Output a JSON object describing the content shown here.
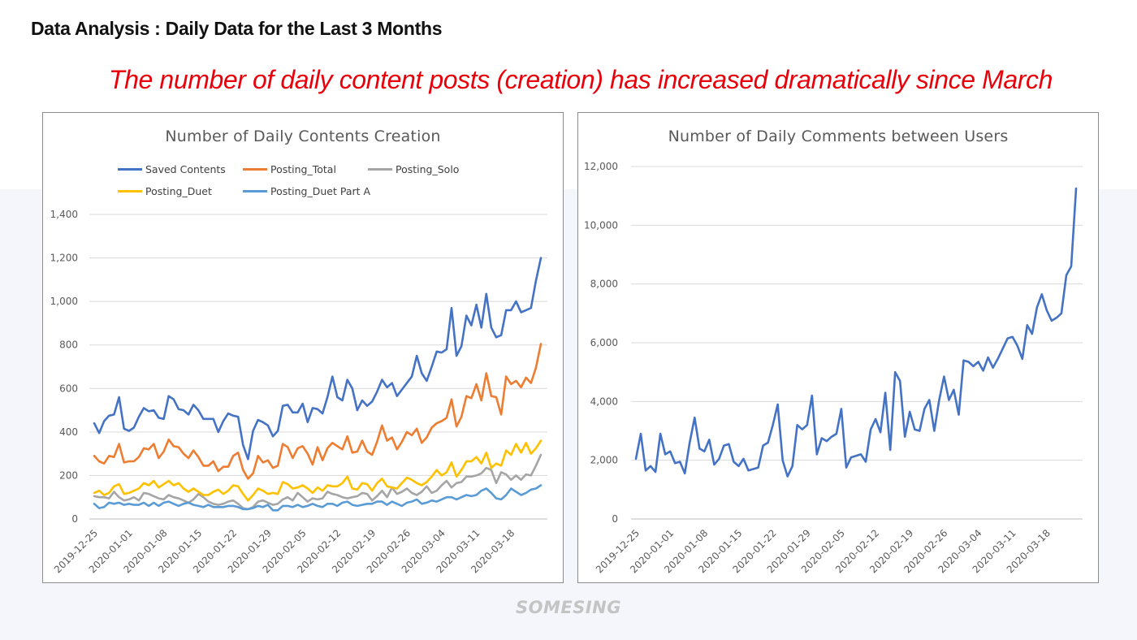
{
  "page": {
    "title": "Data Analysis : Daily Data for the Last 3 Months",
    "headline": "The number of daily content posts (creation) has increased dramatically since March",
    "brand": "SOMESING"
  },
  "chart_data": [
    {
      "type": "line",
      "title": "Number of Daily  Contents Creation",
      "xlabel": "",
      "ylabel": "",
      "ylim": [
        0,
        1400
      ],
      "yticks": [
        0,
        200,
        400,
        600,
        800,
        1000,
        1200,
        1400
      ],
      "ytick_labels": [
        "0",
        "200",
        "400",
        "600",
        "800",
        "1,000",
        "1,200",
        "1,400"
      ],
      "x_start": "2019-12-25",
      "x_tick_labels": [
        "2019-12-25",
        "2020-01-01",
        "2020-01-08",
        "2020-01-15",
        "2020-01-22",
        "2020-01-29",
        "2020-02-05",
        "2020-02-12",
        "2020-02-19",
        "2020-02-26",
        "2020-03-04",
        "2020-03-11",
        "2020-03-18"
      ],
      "grid": true,
      "legend": "top",
      "series": [
        {
          "name": "Saved Contents",
          "color": "#4472c4",
          "values": [
            440,
            395,
            450,
            475,
            480,
            560,
            415,
            405,
            420,
            470,
            510,
            495,
            500,
            465,
            460,
            565,
            550,
            505,
            500,
            480,
            525,
            500,
            460,
            460,
            460,
            400,
            450,
            485,
            475,
            470,
            340,
            275,
            405,
            455,
            445,
            430,
            380,
            405,
            520,
            525,
            490,
            490,
            530,
            445,
            510,
            505,
            485,
            560,
            655,
            560,
            545,
            640,
            600,
            500,
            545,
            520,
            540,
            585,
            640,
            605,
            625,
            565,
            595,
            625,
            655,
            750,
            670,
            635,
            700,
            770,
            765,
            780,
            970,
            750,
            795,
            935,
            890,
            985,
            880,
            1035,
            880,
            835,
            845,
            960,
            960,
            1000,
            950,
            960,
            970,
            1095,
            1200
          ]
        },
        {
          "name": "Posting_Total",
          "color": "#ed7d31",
          "values": [
            290,
            265,
            255,
            290,
            285,
            345,
            260,
            265,
            265,
            285,
            325,
            320,
            345,
            280,
            310,
            365,
            335,
            330,
            300,
            280,
            315,
            285,
            245,
            245,
            265,
            220,
            240,
            240,
            290,
            305,
            225,
            185,
            210,
            290,
            260,
            270,
            235,
            245,
            345,
            330,
            280,
            325,
            335,
            300,
            250,
            330,
            270,
            325,
            350,
            335,
            320,
            380,
            305,
            310,
            360,
            310,
            295,
            355,
            430,
            360,
            375,
            320,
            355,
            400,
            385,
            415,
            350,
            375,
            420,
            440,
            450,
            465,
            550,
            425,
            470,
            565,
            555,
            620,
            545,
            670,
            565,
            560,
            480,
            655,
            620,
            635,
            605,
            650,
            625,
            695,
            805
          ]
        },
        {
          "name": "Posting_Solo",
          "color": "#a5a5a5",
          "values": [
            105,
            100,
            100,
            95,
            125,
            100,
            85,
            90,
            100,
            85,
            120,
            115,
            105,
            95,
            90,
            110,
            100,
            95,
            85,
            75,
            90,
            115,
            100,
            80,
            70,
            65,
            70,
            80,
            85,
            70,
            50,
            45,
            55,
            80,
            85,
            75,
            65,
            70,
            90,
            100,
            85,
            120,
            100,
            80,
            95,
            90,
            95,
            125,
            115,
            110,
            100,
            95,
            100,
            105,
            120,
            115,
            85,
            105,
            130,
            100,
            145,
            115,
            125,
            140,
            120,
            110,
            125,
            150,
            120,
            130,
            155,
            175,
            145,
            165,
            170,
            195,
            195,
            200,
            210,
            235,
            225,
            165,
            215,
            205,
            180,
            200,
            180,
            205,
            200,
            245,
            295
          ]
        },
        {
          "name": "Posting_Duet",
          "color": "#ffc000",
          "values": [
            120,
            130,
            110,
            120,
            150,
            160,
            115,
            120,
            130,
            140,
            165,
            155,
            175,
            145,
            160,
            175,
            155,
            165,
            140,
            125,
            140,
            125,
            110,
            110,
            125,
            135,
            115,
            130,
            155,
            150,
            115,
            85,
            110,
            140,
            130,
            115,
            120,
            115,
            170,
            160,
            140,
            145,
            155,
            140,
            120,
            145,
            130,
            155,
            150,
            150,
            165,
            195,
            140,
            135,
            165,
            160,
            130,
            165,
            185,
            150,
            145,
            140,
            165,
            190,
            180,
            165,
            155,
            170,
            195,
            225,
            200,
            215,
            260,
            195,
            225,
            265,
            265,
            285,
            255,
            305,
            235,
            255,
            245,
            315,
            295,
            345,
            305,
            350,
            300,
            325,
            360
          ]
        },
        {
          "name": "Posting_Duet Part A",
          "color": "#5b9bd5",
          "values": [
            70,
            50,
            55,
            75,
            70,
            75,
            65,
            70,
            65,
            65,
            75,
            60,
            75,
            60,
            75,
            80,
            70,
            60,
            70,
            75,
            65,
            60,
            55,
            65,
            55,
            55,
            55,
            60,
            60,
            55,
            45,
            45,
            50,
            60,
            55,
            65,
            40,
            40,
            60,
            60,
            55,
            65,
            55,
            60,
            70,
            60,
            55,
            70,
            70,
            60,
            75,
            80,
            65,
            60,
            65,
            70,
            70,
            80,
            80,
            65,
            80,
            70,
            60,
            75,
            80,
            90,
            70,
            75,
            85,
            80,
            90,
            100,
            100,
            90,
            100,
            110,
            105,
            110,
            130,
            140,
            120,
            95,
            90,
            110,
            140,
            125,
            110,
            120,
            135,
            140,
            155
          ]
        }
      ]
    },
    {
      "type": "line",
      "title": "Number of Daily Comments between Users",
      "xlabel": "",
      "ylabel": "",
      "ylim": [
        0,
        12000
      ],
      "yticks": [
        0,
        2000,
        4000,
        6000,
        8000,
        10000,
        12000
      ],
      "ytick_labels": [
        "0",
        "2,000",
        "4,000",
        "6,000",
        "8,000",
        "10,000",
        "12,000"
      ],
      "x_start": "2019-12-25",
      "x_tick_labels": [
        "2019-12-25",
        "2020-01-01",
        "2020-01-08",
        "2020-01-15",
        "2020-01-22",
        "2020-01-29",
        "2020-02-05",
        "2020-02-12",
        "2020-02-19",
        "2020-02-26",
        "2020-03-04",
        "2020-03-11",
        "2020-03-18"
      ],
      "grid": true,
      "legend": "none",
      "series": [
        {
          "name": "",
          "color": "#4472c4",
          "values": [
            2050,
            2900,
            1650,
            1800,
            1600,
            2900,
            2200,
            2300,
            1900,
            1950,
            1550,
            2600,
            3450,
            2400,
            2300,
            2700,
            1850,
            2050,
            2500,
            2550,
            1950,
            1800,
            2050,
            1650,
            1700,
            1750,
            2500,
            2600,
            3200,
            3900,
            2000,
            1450,
            1800,
            3200,
            3050,
            3200,
            4200,
            2200,
            2750,
            2650,
            2800,
            2900,
            3750,
            1750,
            2100,
            2150,
            2200,
            1950,
            3050,
            3400,
            2950,
            4300,
            2350,
            5000,
            4700,
            2800,
            3650,
            3050,
            3000,
            3750,
            4050,
            3000,
            4050,
            4850,
            4050,
            4400,
            3550,
            5400,
            5350,
            5200,
            5350,
            5050,
            5500,
            5150,
            5450,
            5800,
            6150,
            6200,
            5900,
            5450,
            6600,
            6300,
            7200,
            7650,
            7100,
            6750,
            6850,
            7000,
            8300,
            8600,
            11250
          ]
        }
      ]
    }
  ]
}
